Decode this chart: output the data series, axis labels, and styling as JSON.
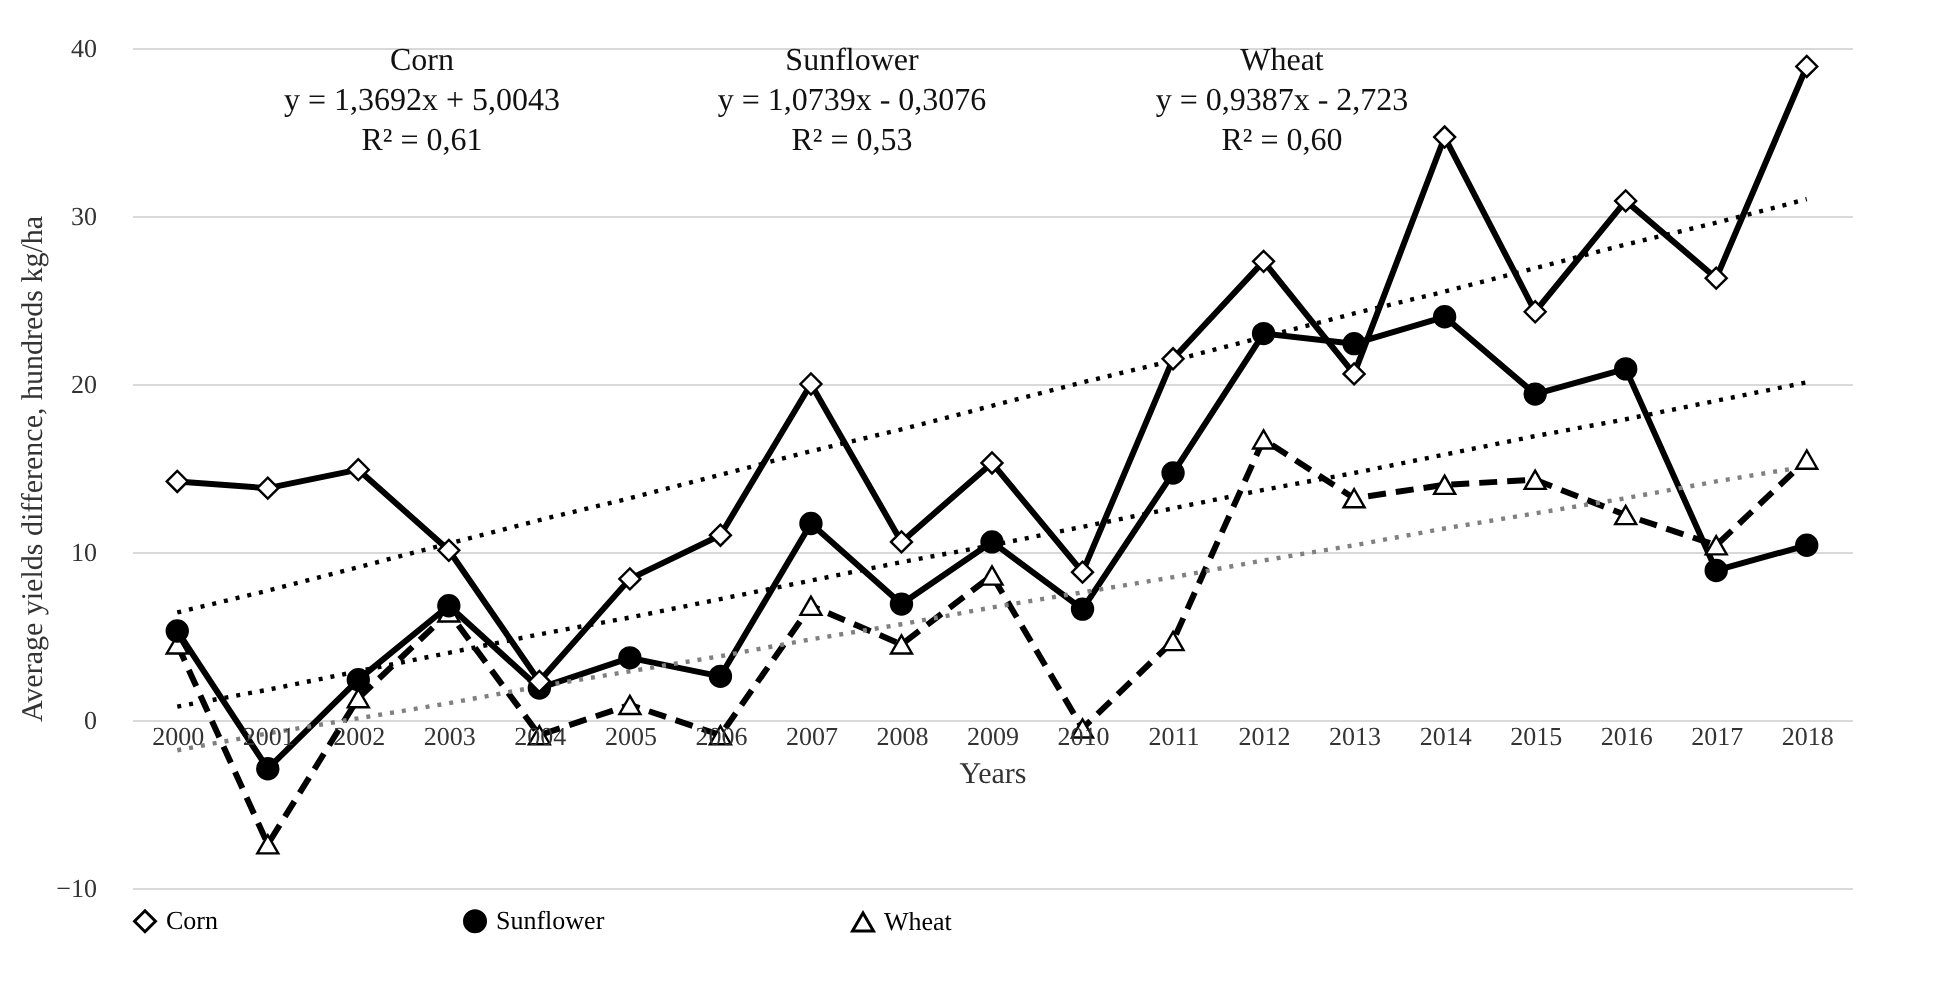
{
  "chart_data": {
    "type": "line",
    "xlabel": "Years",
    "ylabel": "Average yields difference, hundreds kg/ha",
    "categories": [
      "2000",
      "2001",
      "2002",
      "2003",
      "2004",
      "2005",
      "2006",
      "2007",
      "2008",
      "2009",
      "2010",
      "2011",
      "2012",
      "2013",
      "2014",
      "2015",
      "2016",
      "2017",
      "2018"
    ],
    "ylim": [
      -10,
      40
    ],
    "yticks": [
      -10,
      0,
      10,
      20,
      30,
      40
    ],
    "grid": "y",
    "legend": "bottom",
    "annotations": [
      "Corn",
      "y = 1,3692x + 5,0043",
      "R² = 0,61",
      "Sunflower",
      "y = 1,0739x - 0,3076",
      "R² = 0,53",
      "Wheat",
      "y = 0,9387x - 2,723",
      "R² = 0,60"
    ],
    "series": [
      {
        "name": "Corn",
        "color": "#000000",
        "marker": "diamond",
        "line_style": "solid",
        "values": [
          14.2,
          13.8,
          14.9,
          10.1,
          2.3,
          8.4,
          11.0,
          20.0,
          10.6,
          15.3,
          8.8,
          21.5,
          27.3,
          20.6,
          34.7,
          24.3,
          30.9,
          26.3,
          38.9
        ]
      },
      {
        "name": "Sunflower",
        "color": "#000000",
        "marker": "circle",
        "line_style": "solid",
        "values": [
          5.3,
          -2.9,
          2.4,
          6.8,
          1.9,
          3.7,
          2.6,
          11.7,
          6.9,
          10.6,
          6.6,
          14.7,
          23.0,
          22.4,
          24.0,
          19.4,
          20.9,
          8.9,
          10.4
        ]
      },
      {
        "name": "Wheat",
        "color": "#000000",
        "marker": "triangle",
        "line_style": "dashed",
        "values": [
          4.5,
          -7.4,
          1.3,
          6.4,
          -0.9,
          0.9,
          -0.9,
          6.8,
          4.5,
          8.6,
          -0.5,
          4.7,
          16.7,
          13.2,
          14.0,
          14.3,
          12.2,
          10.4,
          15.5
        ]
      },
      {
        "type": "line",
        "color": "#000000",
        "line_style": "dotted",
        "values": [
          6.4,
          7.7,
          9.1,
          10.5,
          11.9,
          13.2,
          14.6,
          16.0,
          17.3,
          18.7,
          20.1,
          21.4,
          22.8,
          24.2,
          25.5,
          26.9,
          28.3,
          29.6,
          31.0
        ]
      },
      {
        "type": "line",
        "color": "#000000",
        "line_style": "dotted",
        "values": [
          0.8,
          1.8,
          2.9,
          4.0,
          5.1,
          6.1,
          7.2,
          8.3,
          9.4,
          10.4,
          11.5,
          12.6,
          13.7,
          14.7,
          15.8,
          16.9,
          17.9,
          19.0,
          20.1
        ]
      },
      {
        "type": "line",
        "color": "#808080",
        "line_style": "dotted",
        "values": [
          -1.8,
          -0.8,
          0.1,
          1.0,
          2.0,
          2.9,
          3.8,
          4.8,
          5.7,
          6.7,
          7.6,
          8.5,
          9.5,
          10.4,
          11.4,
          12.3,
          13.2,
          14.2,
          15.1
        ]
      }
    ]
  }
}
